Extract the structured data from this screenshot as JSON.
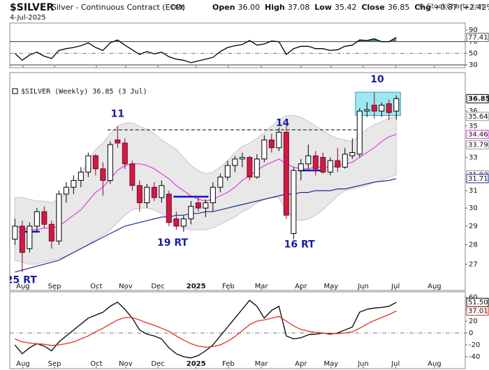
{
  "header": {
    "symbol": "$SILVER",
    "name": "Silver - Continuous Contract (EOD)",
    "exchange": "CME",
    "date": "4-Jul-2025",
    "stats": [
      {
        "label": "Open",
        "value": "36.00"
      },
      {
        "label": "High",
        "value": "37.08"
      },
      {
        "label": "Low",
        "value": "35.42"
      },
      {
        "label": "Close",
        "value": "36.85"
      },
      {
        "label": "Chg",
        "value": "+0.87 (+2.42%)"
      }
    ],
    "watermark": "© StockCharts.com"
  },
  "chart_data": [
    {
      "type": "candlestick",
      "legend": "$SILVER (Weekly) 36.85 (3 Jul)",
      "xlim": [
        -0.7,
        61.4
      ],
      "xticks": [
        {
          "value": 1.1,
          "label": "Aug"
        },
        {
          "value": 5.4,
          "label": "Sep"
        },
        {
          "value": 11.1,
          "label": "Oct"
        },
        {
          "value": 15.1,
          "label": "Nov"
        },
        {
          "value": 19.5,
          "label": "Dec"
        },
        {
          "value": 24.7,
          "label": "2025",
          "bold": true
        },
        {
          "value": 29.1,
          "label": "Feb"
        },
        {
          "value": 33.6,
          "label": "Mar"
        },
        {
          "value": 39.0,
          "label": "Apr"
        },
        {
          "value": 43.1,
          "label": "May"
        },
        {
          "value": 47.5,
          "label": "Jun"
        },
        {
          "value": 51.9,
          "label": "Jul"
        },
        {
          "value": 57.2,
          "label": "Aug"
        }
      ],
      "ylim": [
        25.7,
        38.7
      ],
      "log_scale": true,
      "yticks": [
        27,
        28,
        29,
        30,
        31,
        33,
        35,
        36
      ],
      "up_color": "#ffffff",
      "down_color": "#d01a45",
      "open": [
        28.3,
        29.0,
        27.8,
        29.0,
        29.8,
        29.1,
        28.2,
        30.8,
        31.2,
        31.6,
        32.1,
        33.1,
        32.3,
        31.6,
        34.1,
        33.9,
        32.6,
        31.3,
        30.3,
        31.2,
        30.6,
        30.8,
        29.4,
        29.0,
        29.4,
        30.3,
        30.0,
        30.3,
        31.2,
        31.8,
        32.5,
        32.9,
        33.0,
        31.8,
        32.9,
        34.1,
        33.6,
        34.6,
        28.6,
        32.2,
        32.6,
        33.1,
        33.0,
        32.1,
        32.8,
        32.4,
        33.1,
        33.2,
        36.0,
        36.4,
        36.0,
        36.5,
        36.0
      ],
      "high": [
        29.4,
        29.3,
        29.2,
        30.0,
        30.1,
        29.3,
        31.0,
        31.5,
        31.9,
        32.4,
        33.3,
        33.2,
        32.7,
        34.0,
        35.0,
        34.2,
        32.8,
        31.6,
        31.4,
        31.5,
        31.6,
        31.0,
        29.8,
        29.6,
        30.4,
        30.6,
        30.5,
        31.5,
        32.0,
        32.8,
        33.1,
        33.3,
        33.1,
        33.2,
        34.4,
        34.5,
        34.9,
        35.0,
        32.4,
        32.9,
        33.8,
        33.4,
        33.3,
        33.0,
        33.6,
        33.6,
        34.2,
        36.2,
        36.6,
        37.3,
        36.6,
        36.8,
        37.08
      ],
      "low": [
        28.0,
        26.6,
        27.6,
        28.7,
        28.9,
        27.8,
        28.0,
        30.3,
        30.8,
        31.2,
        31.8,
        31.9,
        30.7,
        31.4,
        33.6,
        32.3,
        31.0,
        29.8,
        30.0,
        30.4,
        30.3,
        29.0,
        28.8,
        28.7,
        29.1,
        29.8,
        29.5,
        29.8,
        30.9,
        31.6,
        32.1,
        32.4,
        31.6,
        31.7,
        32.7,
        33.3,
        33.4,
        29.4,
        28.3,
        31.6,
        32.3,
        31.9,
        32.0,
        31.9,
        32.1,
        32.3,
        32.9,
        33.0,
        35.6,
        35.5,
        35.6,
        35.4,
        35.42
      ],
      "close": [
        29.0,
        27.6,
        29.0,
        29.8,
        29.1,
        28.2,
        30.8,
        31.2,
        31.6,
        32.1,
        33.1,
        32.3,
        31.6,
        33.8,
        33.9,
        32.6,
        31.3,
        30.3,
        31.2,
        30.6,
        31.3,
        29.2,
        29.0,
        29.4,
        30.1,
        30.0,
        30.3,
        31.2,
        31.8,
        32.5,
        32.9,
        33.0,
        31.8,
        32.9,
        34.1,
        33.6,
        34.6,
        29.6,
        32.2,
        32.6,
        33.1,
        32.3,
        32.1,
        32.8,
        32.4,
        33.2,
        33.3,
        36.0,
        36.1,
        36.0,
        36.4,
        35.9,
        36.85
      ],
      "band": {
        "color": "#e8e8e8",
        "edge_color": "#c6c6c6",
        "upper": [
          30.6,
          30.6,
          30.5,
          30.4,
          30.4,
          30.3,
          30.5,
          30.9,
          31.4,
          32.0,
          32.8,
          33.5,
          33.9,
          34.5,
          35.0,
          35.2,
          35.2,
          35.0,
          34.8,
          34.5,
          34.1,
          33.8,
          33.5,
          33.0,
          32.5,
          32.2,
          32.0,
          32.1,
          32.4,
          32.8,
          33.3,
          33.7,
          33.9,
          34.2,
          34.6,
          35.0,
          35.4,
          35.7,
          35.7,
          35.6,
          35.3,
          35.0,
          34.7,
          34.4,
          34.2,
          34.1,
          34.0,
          34.4,
          34.8,
          35.1,
          35.3,
          35.5,
          35.64
        ],
        "lower": [
          27.2,
          27.1,
          27.0,
          27.0,
          27.1,
          27.2,
          27.3,
          27.4,
          27.6,
          27.8,
          28.0,
          28.3,
          28.5,
          28.8,
          29.2,
          29.6,
          29.9,
          30.0,
          30.0,
          29.9,
          29.7,
          29.4,
          29.1,
          28.9,
          28.8,
          28.8,
          28.8,
          28.9,
          29.1,
          29.3,
          29.5,
          29.8,
          30.0,
          30.3,
          30.5,
          30.6,
          30.6,
          29.8,
          29.4,
          29.3,
          29.4,
          29.6,
          29.9,
          30.3,
          30.7,
          31.0,
          31.1,
          31.2,
          31.3,
          31.5,
          31.6,
          31.8,
          31.93
        ]
      },
      "overlays": [
        {
          "color": "#e03ee0",
          "values": [
            29.0,
            28.9,
            28.8,
            28.8,
            28.9,
            28.9,
            29.0,
            29.3,
            29.6,
            29.9,
            30.4,
            30.9,
            31.2,
            31.7,
            32.2,
            32.5,
            32.6,
            32.6,
            32.5,
            32.3,
            32.0,
            31.7,
            31.3,
            31.0,
            30.7,
            30.5,
            30.4,
            30.5,
            30.7,
            30.9,
            31.2,
            31.6,
            31.9,
            32.2,
            32.5,
            32.7,
            32.9,
            32.6,
            32.4,
            32.3,
            32.3,
            32.4,
            32.4,
            32.4,
            32.5,
            32.6,
            32.7,
            33.0,
            33.3,
            33.6,
            34.0,
            34.3,
            34.46
          ]
        },
        {
          "color": "#1c2a96",
          "values": [
            26.6,
            26.7,
            26.8,
            26.9,
            27.0,
            27.1,
            27.2,
            27.4,
            27.6,
            27.8,
            28.0,
            28.2,
            28.4,
            28.6,
            28.8,
            29.0,
            29.1,
            29.2,
            29.3,
            29.4,
            29.5,
            29.5,
            29.6,
            29.6,
            29.7,
            29.7,
            29.8,
            29.8,
            29.9,
            30.0,
            30.1,
            30.2,
            30.3,
            30.4,
            30.5,
            30.6,
            30.7,
            30.8,
            30.8,
            30.9,
            30.9,
            31.0,
            31.0,
            31.0,
            31.1,
            31.1,
            31.2,
            31.3,
            31.4,
            31.5,
            31.55,
            31.6,
            31.71
          ]
        }
      ],
      "levels": [
        {
          "value": 34.75,
          "x": [
            13,
            47
          ],
          "color": "#000000",
          "dash": true
        },
        {
          "value": 28.7,
          "x": [
            1,
            3
          ],
          "color": "#1515c0",
          "dash": false
        },
        {
          "value": 30.65,
          "x": [
            22,
            26
          ],
          "color": "#1515c0",
          "dash": false
        },
        {
          "value": 32.2,
          "x": [
            39,
            42
          ],
          "color": "#1515c0",
          "dash": false
        }
      ],
      "highlight": {
        "x": [
          47,
          52
        ],
        "y": [
          35.7,
          37.3
        ],
        "color": "#7fdfea",
        "edge_color": "#2aa9c4"
      },
      "annotation_color": "#1b1ba8",
      "annotations": [
        {
          "text": "11",
          "x": 14,
          "y": 35.8
        },
        {
          "text": "14",
          "x": 36.5,
          "y": 35.2
        },
        {
          "text": "10",
          "x": 49.4,
          "y": 38.2
        },
        {
          "text": "25 RT",
          "x": 0.9,
          "y": 26.2
        },
        {
          "text": "19 RT",
          "x": 21.5,
          "y": 28.1
        },
        {
          "text": "16 RT",
          "x": 38.8,
          "y": 28.0
        }
      ],
      "last_values": [
        {
          "value": 36.85,
          "color": "#000000"
        },
        {
          "value": 35.64,
          "color": "#9a9a9a"
        },
        {
          "value": 34.46,
          "color": "#e03ee0"
        },
        {
          "value": 33.79,
          "color": "#9a9a9a"
        },
        {
          "value": 31.93,
          "color": "#9a9a9a"
        },
        {
          "value": 31.71,
          "color": "#1c2a96"
        }
      ]
    },
    {
      "type": "line",
      "ylim": [
        25.2,
        102
      ],
      "yticks": [
        30,
        50,
        70,
        90
      ],
      "guides": [
        {
          "value": 70,
          "dash": false
        },
        {
          "value": 50,
          "dash": true
        },
        {
          "value": 30,
          "dash": false
        }
      ],
      "fill_above": 70,
      "fill_color": "#4f8a4f",
      "series": [
        {
          "color": "#000000",
          "values": [
            50,
            38,
            47,
            52,
            45,
            41,
            55,
            58,
            60,
            63,
            68,
            60,
            55,
            68,
            73,
            64,
            56,
            48,
            53,
            49,
            52,
            44,
            40,
            38,
            34,
            37,
            40,
            43,
            53,
            60,
            63,
            65,
            72,
            64,
            66,
            71,
            70,
            48,
            58,
            62,
            62,
            58,
            58,
            55,
            56,
            62,
            64,
            73,
            72,
            75,
            70,
            70,
            77.41
          ]
        }
      ],
      "last_values": [
        {
          "value": 77.41,
          "color": "#666666"
        }
      ]
    },
    {
      "type": "line",
      "ylim": [
        -60,
        69.4
      ],
      "yticks": [
        -40,
        -20,
        0,
        20,
        40,
        60
      ],
      "guides": [
        {
          "value": 0,
          "dash": true
        }
      ],
      "series": [
        {
          "color": "#000000",
          "values": [
            -20,
            -35,
            -25,
            -18,
            -22,
            -30,
            -15,
            -5,
            5,
            15,
            25,
            30,
            35,
            45,
            52,
            40,
            25,
            5,
            -2,
            -5,
            -10,
            -25,
            -35,
            -40,
            -42,
            -38,
            -30,
            -20,
            -5,
            10,
            25,
            40,
            55,
            45,
            25,
            38,
            45,
            -5,
            -10,
            -8,
            -3,
            -2,
            0,
            -2,
            0,
            5,
            10,
            35,
            40,
            42,
            43,
            45,
            51.5
          ]
        },
        {
          "color": "#e0301e",
          "values": [
            -10,
            -15,
            -17,
            -18,
            -19,
            -21,
            -20,
            -18,
            -15,
            -10,
            -5,
            2,
            8,
            15,
            22,
            26,
            26,
            22,
            17,
            13,
            8,
            3,
            -5,
            -12,
            -18,
            -22,
            -24,
            -23,
            -20,
            -14,
            -6,
            4,
            14,
            20,
            22,
            25,
            28,
            20,
            12,
            6,
            3,
            1,
            0,
            -1,
            -1,
            0,
            2,
            8,
            15,
            21,
            26,
            31,
            37.01
          ]
        }
      ],
      "last_values": [
        {
          "value": 51.5,
          "label": "51.50",
          "color": "#000000"
        },
        {
          "value": 37.01,
          "color": "#e0301e"
        }
      ]
    }
  ]
}
